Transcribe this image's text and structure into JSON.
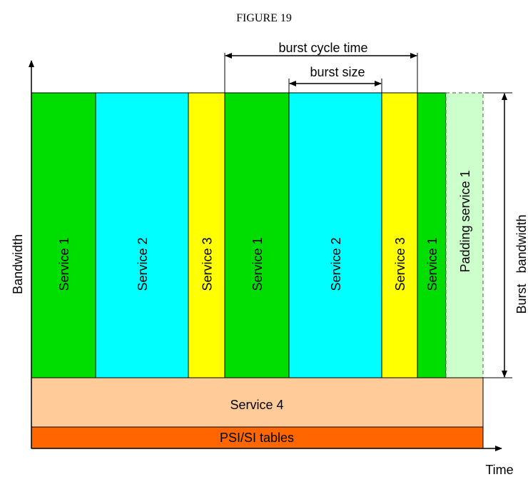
{
  "figure": {
    "title": "FIGURE 19"
  },
  "axes": {
    "y_label": "Bandwidth",
    "x_label": "Time"
  },
  "annotations": {
    "burst_cycle_time": "burst cycle time",
    "burst_size": "burst size",
    "burst_bandwidth": "Burst   bandwidth"
  },
  "colors": {
    "service1": "#00dd00",
    "service2": "#00ffff",
    "service3": "#ffff00",
    "padding": "#ccffcc",
    "service4": "#ffcc99",
    "psi": "#ff6600"
  },
  "blocks": [
    {
      "label": "Service 1",
      "kind": "service1"
    },
    {
      "label": "Service 2",
      "kind": "service2"
    },
    {
      "label": "Service 3",
      "kind": "service3"
    },
    {
      "label": "Service 1",
      "kind": "service1"
    },
    {
      "label": "Service 2",
      "kind": "service2"
    },
    {
      "label": "Service 3",
      "kind": "service3"
    },
    {
      "label": "Service 1",
      "kind": "service1"
    },
    {
      "label": "Padding service 1",
      "kind": "padding"
    }
  ],
  "base_bands": {
    "service4": "Service 4",
    "psi": "PSI/SI tables"
  }
}
